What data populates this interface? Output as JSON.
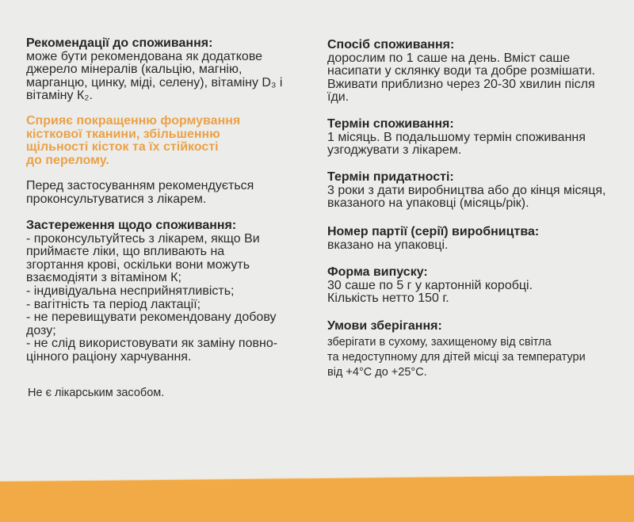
{
  "left": {
    "recommendations": {
      "heading": "Рекомендації до споживання:",
      "lines": [
        "може бути рекомендована як додаткове",
        "джерело мінералів (кальцію, магнію,",
        "марганцю, цинку, міді, селену), вітаміну D₃ і",
        "вітаміну К₂."
      ]
    },
    "highlight": {
      "lines": [
        "Сприяє покращенню формування",
        "кісткової тканини, збільшенню",
        "щільності кісток та їх стійкості",
        "до перелому."
      ]
    },
    "consult": {
      "lines": [
        "Перед застосуванням рекомендується",
        "проконсультуватися з лікарем."
      ]
    },
    "warnings": {
      "heading": "Застереження щодо споживання:",
      "lines": [
        "- проконсультуйтесь з лікарем, якщо Ви",
        "приймаєте ліки, що впливають на",
        "згортання крові, оскільки вони можуть",
        "взаємодіяти з вітаміном К;",
        "- індивідуальна несприйнятливість;",
        "- вагітність та період лактації;",
        "- не перевищувати рекомендовану добову",
        "дозу;",
        "- не слід використовувати як заміну повно-",
        "цінного раціону харчування."
      ]
    },
    "not_medicine": "Не є лікарським засобом."
  },
  "right": {
    "usage": {
      "heading": "Спосіб споживання:",
      "lines": [
        "дорослим по 1 саше на день. Вміст саше",
        "насипати у склянку води та добре розмішати.",
        "Вживати приблизно через 20-30 хвилин після",
        "їди."
      ]
    },
    "duration": {
      "heading": "Термін споживання:",
      "lines": [
        "1 місяць. В подальшому термін споживання",
        "узгоджувати з лікарем."
      ]
    },
    "shelf_life": {
      "heading": "Термін придатності:",
      "lines": [
        "3 роки з дати виробництва або до кінця місяця,",
        "вказаного на упаковці (місяць/рік)."
      ]
    },
    "batch": {
      "heading": "Номер партії (серії) виробництва:",
      "lines": [
        "вказано на упаковці."
      ]
    },
    "form": {
      "heading": "Форма випуску:",
      "lines": [
        "30 саше по 5 г у картонній коробці.",
        "Кількість нетто 150 г."
      ]
    },
    "storage": {
      "heading": "Умови зберігання:",
      "lines": [
        "зберігати в сухому, захищеному від світла",
        "та недоступному для дітей місці за температури",
        "від +4°C до +25°C."
      ]
    }
  },
  "colors": {
    "background": "#ecedeb",
    "accent": "#f1aa45",
    "highlight_text": "#eba146"
  }
}
